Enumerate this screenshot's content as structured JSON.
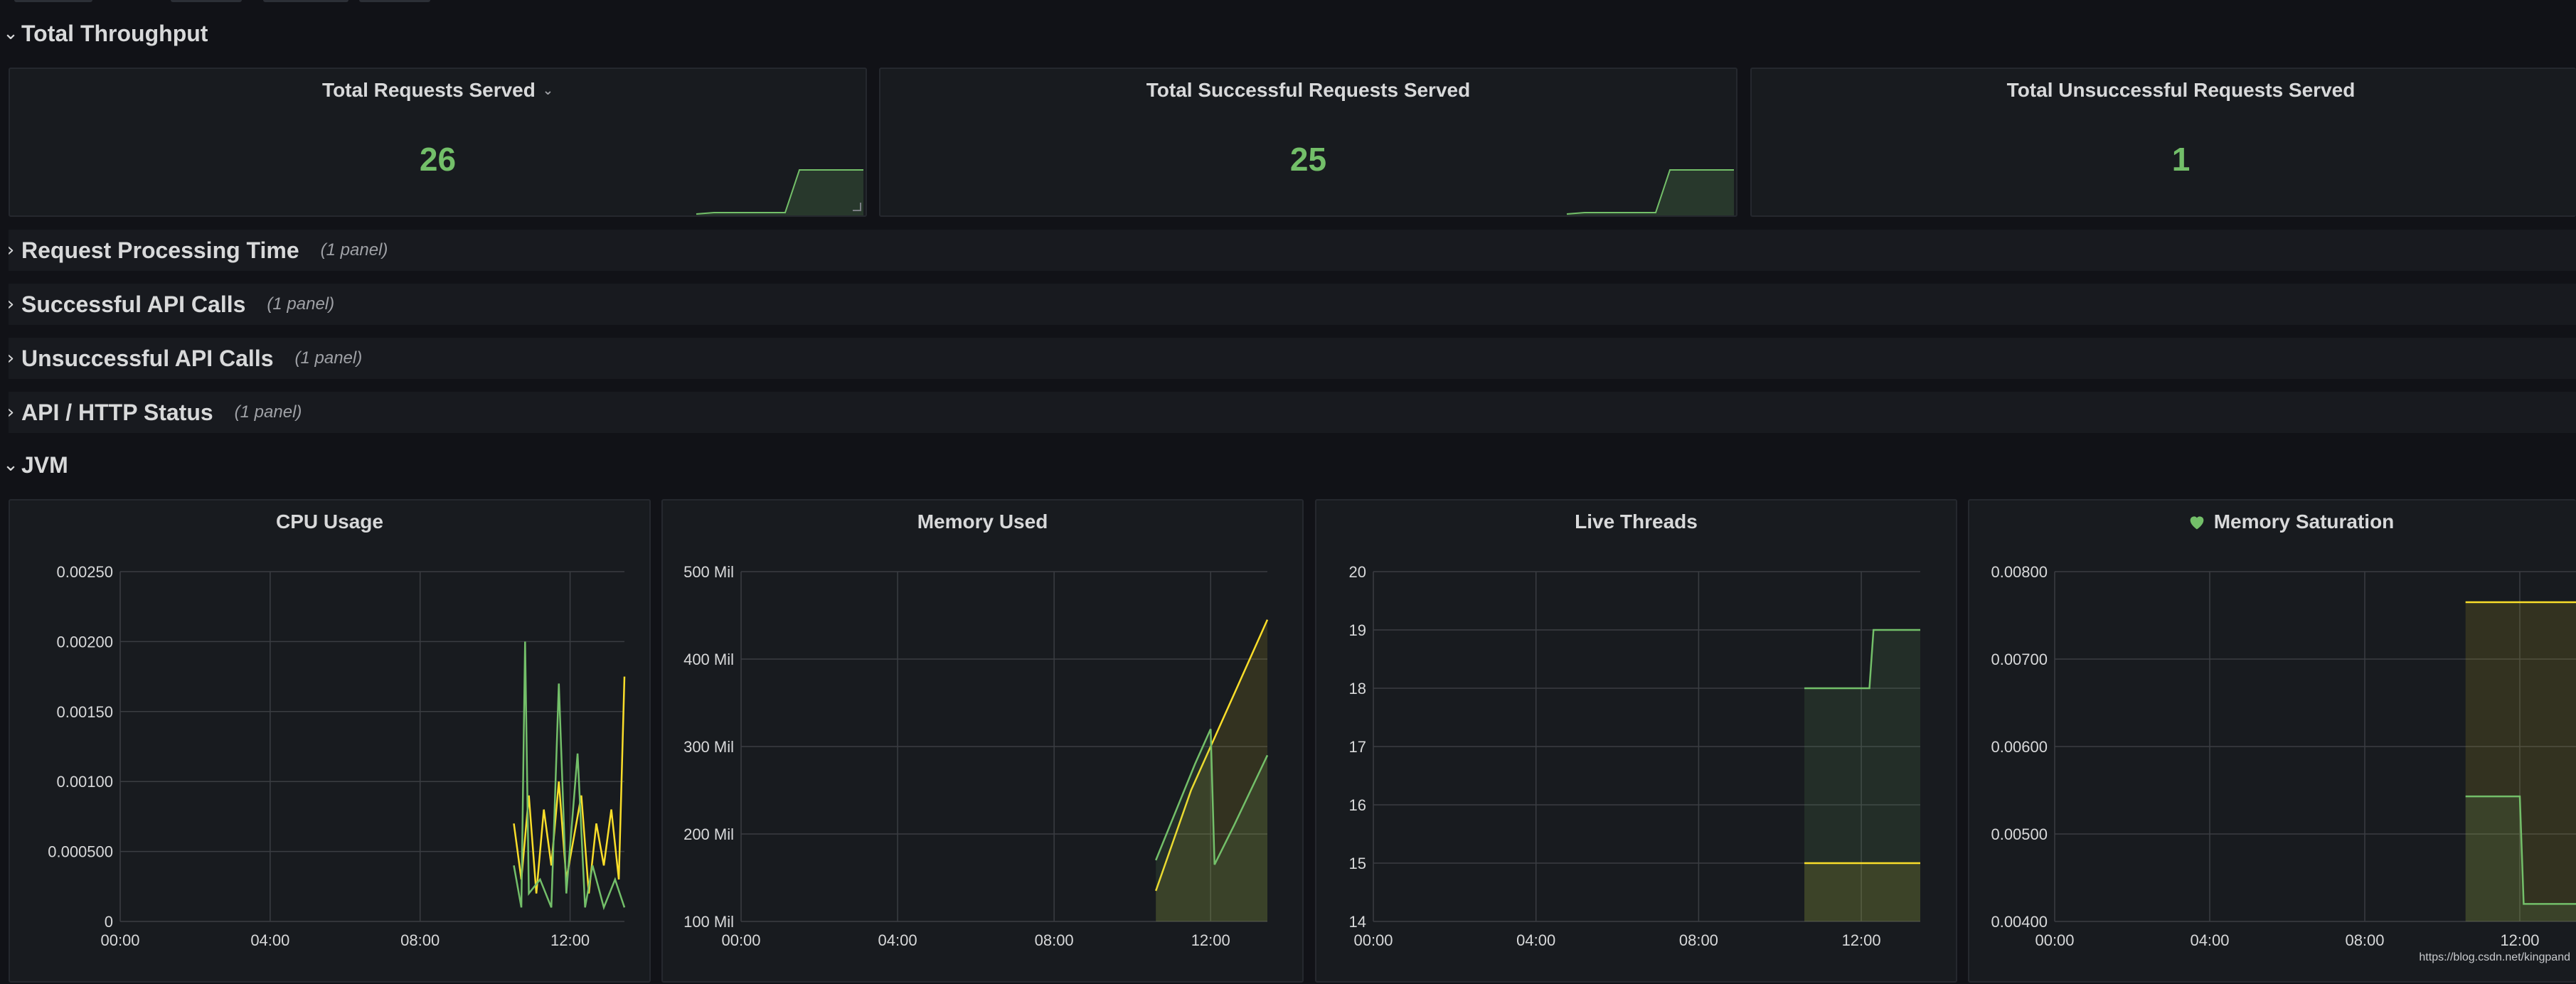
{
  "rows": {
    "total_throughput": {
      "label": "Total Throughput"
    },
    "request_processing_time": {
      "label": "Request Processing Time",
      "count": "(1 panel)"
    },
    "successful_api_calls": {
      "label": "Successful API Calls",
      "count": "(1 panel)"
    },
    "unsuccessful_api_calls": {
      "label": "Unsuccessful API Calls",
      "count": "(1 panel)"
    },
    "api_http_status": {
      "label": "API / HTTP Status",
      "count": "(1 panel)"
    },
    "jvm": {
      "label": "JVM"
    }
  },
  "stats": {
    "total_requests": {
      "title": "Total Requests Served",
      "value": "26"
    },
    "total_successful": {
      "title": "Total Successful Requests Served",
      "value": "25"
    },
    "total_unsuccessful": {
      "title": "Total Unsuccessful Requests Served",
      "value": "1"
    }
  },
  "panels": {
    "cpu": {
      "title": "CPU Usage"
    },
    "memory_used": {
      "title": "Memory Used"
    },
    "live_threads": {
      "title": "Live Threads"
    },
    "memory_saturation": {
      "title": "Memory Saturation"
    }
  },
  "colors": {
    "green": "#73bf69",
    "yellow": "#fade2a",
    "grid": "#3a3d42",
    "text": "#d8d9da"
  },
  "icons": {
    "row_expanded": "chevron-down-icon",
    "row_collapsed": "chevron-right-icon",
    "panel_menu": "chevron-down-icon",
    "health": "heart-icon"
  },
  "watermark": "https://blog.csdn.net/kingpand",
  "chart_data": [
    {
      "type": "line",
      "title": "CPU Usage",
      "x": [
        "00:00",
        "04:00",
        "08:00",
        "12:00"
      ],
      "ylim": [
        0,
        0.0025
      ],
      "yticks": [
        "0",
        "0.000500",
        "0.00100",
        "0.00150",
        "0.00200",
        "0.00250"
      ],
      "series": [
        {
          "color": "#fade2a",
          "values": [
            [
              10.5,
              0.0007
            ],
            [
              10.7,
              0.0003
            ],
            [
              10.9,
              0.0009
            ],
            [
              11.1,
              0.0002
            ],
            [
              11.3,
              0.0008
            ],
            [
              11.5,
              0.0004
            ],
            [
              11.7,
              0.001
            ],
            [
              11.9,
              0.0003
            ],
            [
              12.1,
              0.0006
            ],
            [
              12.3,
              0.0009
            ],
            [
              12.5,
              0.0002
            ],
            [
              12.7,
              0.0007
            ],
            [
              12.9,
              0.0004
            ],
            [
              13.1,
              0.0008
            ],
            [
              13.3,
              0.0003
            ],
            [
              13.45,
              0.00175
            ]
          ]
        },
        {
          "color": "#73bf69",
          "values": [
            [
              10.5,
              0.0004
            ],
            [
              10.7,
              0.0001
            ],
            [
              10.8,
              0.002
            ],
            [
              10.9,
              0.0002
            ],
            [
              11.2,
              0.0003
            ],
            [
              11.5,
              0.0001
            ],
            [
              11.7,
              0.0017
            ],
            [
              11.9,
              0.0002
            ],
            [
              12.2,
              0.0012
            ],
            [
              12.4,
              0.0001
            ],
            [
              12.6,
              0.0004
            ],
            [
              12.9,
              0.0001
            ],
            [
              13.2,
              0.0003
            ],
            [
              13.45,
              0.0001
            ]
          ]
        }
      ]
    },
    {
      "type": "area",
      "title": "Memory Used",
      "x": [
        "00:00",
        "04:00",
        "08:00",
        "12:00"
      ],
      "ylim": [
        100,
        500
      ],
      "yticks": [
        "100 Mil",
        "200 Mil",
        "300 Mil",
        "400 Mil",
        "500 Mil"
      ],
      "series": [
        {
          "color": "#fade2a",
          "values": [
            [
              10.6,
              135
            ],
            [
              11.5,
              250
            ],
            [
              12.0,
              300
            ],
            [
              13.45,
              445
            ]
          ]
        },
        {
          "color": "#73bf69",
          "values": [
            [
              10.6,
              170
            ],
            [
              11.6,
              280
            ],
            [
              12.0,
              320
            ],
            [
              12.1,
              165
            ],
            [
              12.6,
              210
            ],
            [
              13.45,
              290
            ]
          ]
        }
      ]
    },
    {
      "type": "area",
      "title": "Live Threads",
      "x": [
        "00:00",
        "04:00",
        "08:00",
        "12:00"
      ],
      "ylim": [
        14,
        20
      ],
      "yticks": [
        "14",
        "15",
        "16",
        "17",
        "18",
        "19",
        "20"
      ],
      "series": [
        {
          "color": "#73bf69",
          "values": [
            [
              10.6,
              18
            ],
            [
              12.2,
              18
            ],
            [
              12.3,
              19
            ],
            [
              13.45,
              19
            ]
          ]
        },
        {
          "color": "#fade2a",
          "values": [
            [
              10.6,
              15
            ],
            [
              13.45,
              15
            ]
          ]
        }
      ]
    },
    {
      "type": "area",
      "title": "Memory Saturation",
      "x": [
        "00:00",
        "04:00",
        "08:00",
        "12:00"
      ],
      "ylim": [
        0.004,
        0.008
      ],
      "yticks": [
        "0.00400",
        "0.00500",
        "0.00600",
        "0.00700",
        "0.00800"
      ],
      "series": [
        {
          "color": "#fade2a",
          "values": [
            [
              10.6,
              0.00765
            ],
            [
              13.45,
              0.00765
            ]
          ]
        },
        {
          "color": "#73bf69",
          "values": [
            [
              10.6,
              0.00543
            ],
            [
              12.0,
              0.00543
            ],
            [
              12.1,
              0.0042
            ],
            [
              13.45,
              0.0042
            ]
          ]
        }
      ]
    }
  ]
}
